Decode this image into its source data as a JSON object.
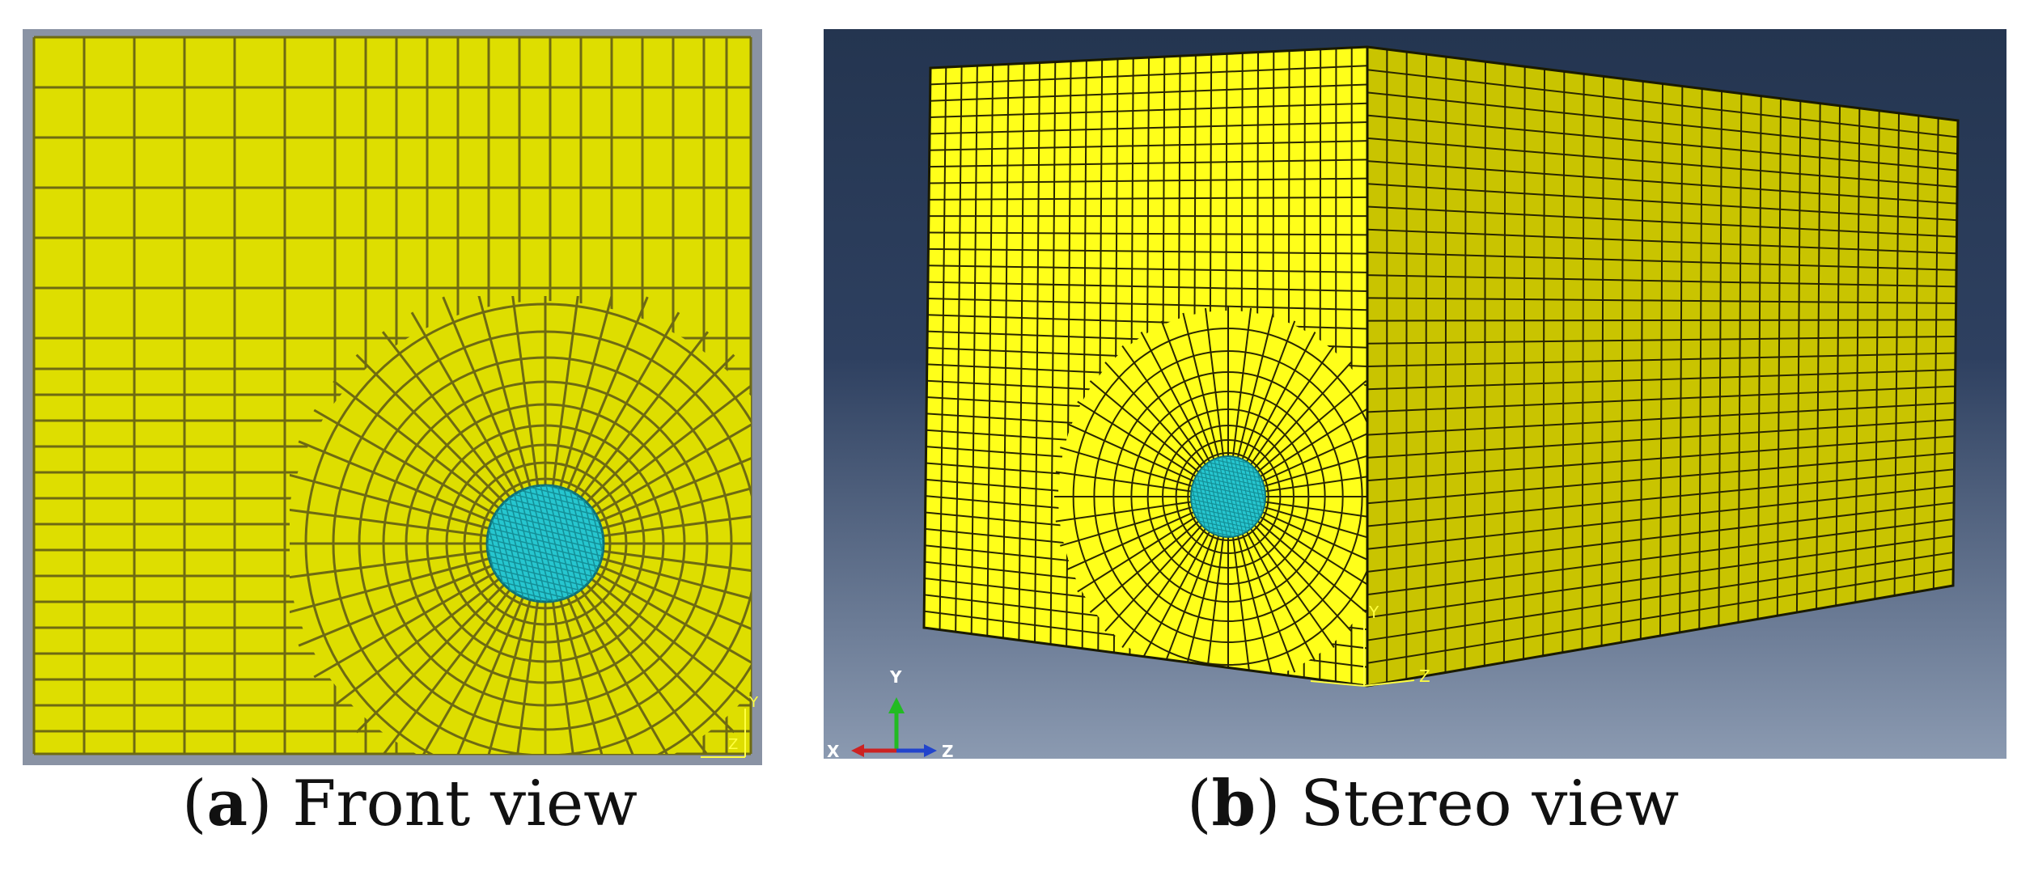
{
  "colors": {
    "mesh_yellow": "#ffff1a",
    "front_yellow": "#dede00",
    "front_line": "#6e6a12",
    "side_shade": "#c9c400",
    "inclusion_cyan": "#26c6cf",
    "background_top": "#243550",
    "background_bottom": "#8b9ab1",
    "edge_black": "#1a1a00"
  },
  "panel_a": {
    "label_letter": "a",
    "label_text": "Front view",
    "axis_y": "Y",
    "axis_z": "Z"
  },
  "panel_b": {
    "label_letter": "b",
    "label_text": "Stereo view",
    "axis_y": "Y",
    "axis_z": "Z",
    "triad_x": "X",
    "triad_y": "Y",
    "triad_z": "Z"
  }
}
